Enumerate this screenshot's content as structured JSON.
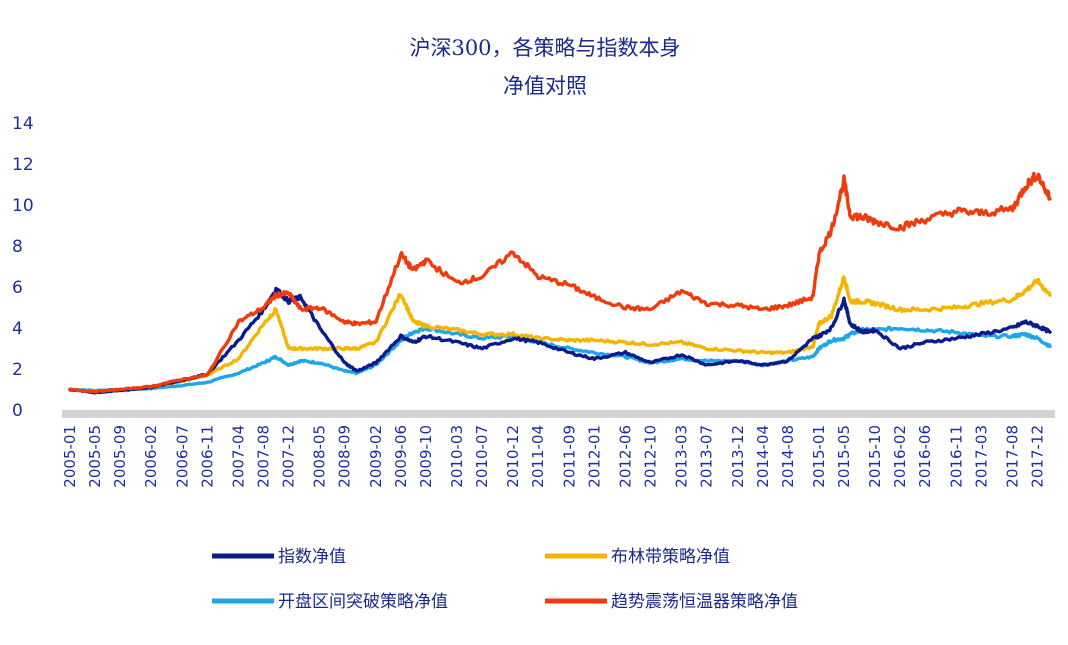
{
  "chart_data": {
    "type": "line",
    "title": "沪深300，各策略与指数本身",
    "subtitle": "净值对照",
    "ylim": [
      0,
      14
    ],
    "yticks": [
      0,
      2,
      4,
      6,
      8,
      10,
      12,
      14
    ],
    "grid": false,
    "legend_position": "bottom",
    "x_tick_labels": [
      "2005-01",
      "2005-05",
      "2005-09",
      "2006-02",
      "2006-07",
      "2006-11",
      "2007-04",
      "2007-08",
      "2007-12",
      "2008-05",
      "2008-09",
      "2009-02",
      "2009-06",
      "2009-10",
      "2010-03",
      "2010-07",
      "2010-12",
      "2011-04",
      "2011-09",
      "2012-01",
      "2012-06",
      "2012-10",
      "2013-03",
      "2013-07",
      "2013-12",
      "2014-04",
      "2014-08",
      "2015-01",
      "2015-05",
      "2015-10",
      "2016-02",
      "2016-06",
      "2016-11",
      "2017-03",
      "2017-08",
      "2017-12"
    ],
    "x": [
      "2005-01",
      "2005-05",
      "2005-09",
      "2006-02",
      "2006-07",
      "2006-11",
      "2007-04",
      "2007-08",
      "2007-10",
      "2007-12",
      "2008-02",
      "2008-05",
      "2008-09",
      "2008-11",
      "2009-02",
      "2009-06",
      "2009-08",
      "2009-10",
      "2010-03",
      "2010-07",
      "2010-12",
      "2011-04",
      "2011-09",
      "2012-01",
      "2012-06",
      "2012-10",
      "2013-03",
      "2013-07",
      "2013-12",
      "2014-04",
      "2014-08",
      "2014-12",
      "2015-01",
      "2015-03",
      "2015-05",
      "2015-06",
      "2015-08",
      "2015-10",
      "2016-02",
      "2016-06",
      "2016-11",
      "2017-03",
      "2017-08",
      "2017-10",
      "2017-12",
      "2018-02"
    ],
    "series": [
      {
        "name": "指数净值",
        "color": "#0b1a8c",
        "values": [
          1.0,
          0.85,
          0.95,
          1.1,
          1.45,
          1.75,
          3.4,
          4.9,
          5.9,
          5.3,
          5.5,
          4.0,
          2.3,
          1.9,
          2.3,
          3.6,
          3.3,
          3.6,
          3.3,
          3.0,
          3.5,
          3.3,
          2.8,
          2.5,
          2.8,
          2.3,
          2.7,
          2.2,
          2.4,
          2.2,
          2.4,
          3.5,
          3.6,
          4.0,
          5.4,
          4.2,
          3.8,
          3.9,
          3.0,
          3.3,
          3.5,
          3.7,
          4.0,
          4.3,
          4.1,
          3.8
        ]
      },
      {
        "name": "布林带策略净值",
        "color": "#f5b400",
        "values": [
          1.0,
          0.9,
          0.95,
          1.1,
          1.4,
          1.7,
          2.5,
          4.2,
          4.9,
          3.0,
          3.0,
          3.0,
          3.0,
          3.0,
          3.3,
          5.7,
          4.3,
          4.1,
          3.9,
          3.7,
          3.7,
          3.5,
          3.4,
          3.4,
          3.3,
          3.2,
          3.3,
          3.0,
          2.9,
          2.8,
          2.8,
          3.1,
          4.2,
          4.6,
          6.5,
          5.3,
          5.3,
          5.2,
          4.9,
          4.9,
          5.0,
          5.2,
          5.4,
          5.8,
          6.3,
          5.6
        ]
      },
      {
        "name": "开盘区间突破策略净值",
        "color": "#1ea7e8",
        "values": [
          1.0,
          0.95,
          1.0,
          1.05,
          1.2,
          1.35,
          1.8,
          2.3,
          2.6,
          2.2,
          2.4,
          2.3,
          1.9,
          1.8,
          2.2,
          3.4,
          3.8,
          4.0,
          3.7,
          3.5,
          3.6,
          3.3,
          3.0,
          2.8,
          2.6,
          2.3,
          2.5,
          2.4,
          2.4,
          2.2,
          2.4,
          2.6,
          3.0,
          3.4,
          3.5,
          3.7,
          3.9,
          3.9,
          4.0,
          3.9,
          3.8,
          3.6,
          3.6,
          3.7,
          3.5,
          3.1
        ]
      },
      {
        "name": "趋势震荡恒温器策略净值",
        "color": "#f03c0c",
        "values": [
          1.0,
          0.9,
          1.0,
          1.15,
          1.5,
          1.7,
          4.3,
          5.0,
          5.6,
          5.7,
          4.9,
          5.0,
          4.3,
          4.2,
          4.3,
          7.6,
          6.8,
          7.3,
          6.2,
          6.5,
          7.7,
          6.5,
          6.1,
          5.5,
          5.0,
          4.9,
          5.8,
          5.2,
          5.1,
          4.9,
          5.1,
          5.5,
          7.6,
          8.8,
          11.2,
          9.5,
          9.4,
          9.2,
          8.9,
          9.3,
          9.7,
          9.6,
          9.8,
          10.9,
          11.5,
          10.3
        ]
      }
    ]
  }
}
